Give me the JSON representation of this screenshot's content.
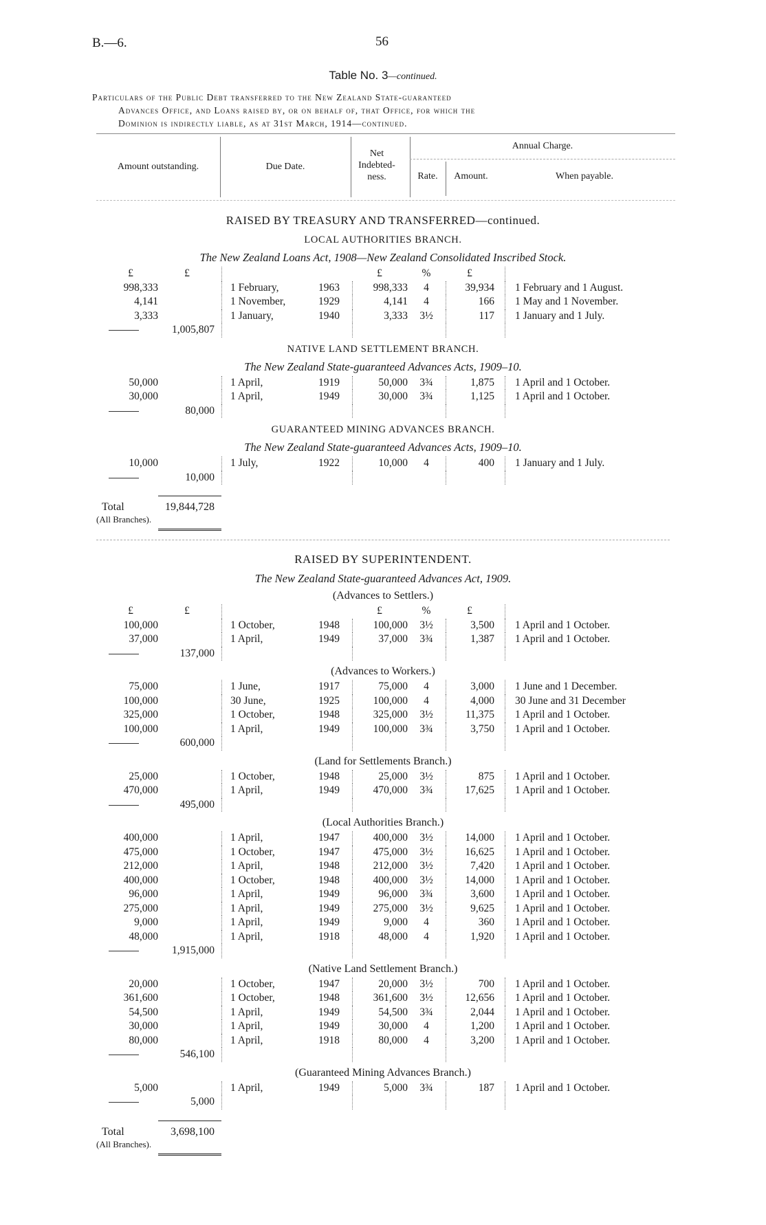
{
  "page": {
    "ref": "B.—6.",
    "number": "56"
  },
  "table_title": {
    "main": "Table No. 3",
    "suffix": "—continued."
  },
  "particulars": [
    "Particulars of the Public Debt transferred to the New Zealand State-guaranteed",
    "Advances Office, and Loans raised by, or on behalf of, that Office, for which the",
    "Dominion is indirectly liable, as at 31st March, 1914—continued."
  ],
  "columns": {
    "amount_outstanding": "Amount outstanding.",
    "due_date": "Due Date.",
    "net": "Net Indebted-ness.",
    "annual_charge": "Annual Charge.",
    "rate": "Rate.",
    "amount": "Amount.",
    "when_payable": "When payable."
  },
  "parts": [
    {
      "title": "RAISED BY TREASURY AND TRANSFERRED—continued.",
      "groups": [
        {
          "heading": "LOCAL AUTHORITIES BRANCH.",
          "act": "The New Zealand Loans Act, 1908—New Zealand Consolidated Inscribed Stock.",
          "units": {
            "amount": "£",
            "sub": "£",
            "net": "£",
            "rate": "%",
            "charge": "£"
          },
          "rows": [
            [
              "998,333",
              "1 February,",
              "1963",
              "998,333",
              "4",
              "39,934",
              "1 February and 1 August."
            ],
            [
              "4,141",
              "1 November,",
              "1929",
              "4,141",
              "4",
              "166",
              "1 May and 1 November."
            ],
            [
              "3,333",
              "1 January,",
              "1940",
              "3,333",
              "3½",
              "117",
              "1 January and 1 July."
            ]
          ],
          "subtotal": "1,005,807"
        },
        {
          "heading": "NATIVE LAND SETTLEMENT BRANCH.",
          "act": "The New Zealand State-guaranteed Advances Acts, 1909–10.",
          "rows": [
            [
              "50,000",
              "1 April,",
              "1919",
              "50,000",
              "3¾",
              "1,875",
              "1 April and 1 October."
            ],
            [
              "30,000",
              "1 April,",
              "1949",
              "30,000",
              "3¾",
              "1,125",
              "1 April and 1 October."
            ]
          ],
          "subtotal": "80,000"
        },
        {
          "heading": "GUARANTEED MINING ADVANCES BRANCH.",
          "act": "The New Zealand State-guaranteed Advances Acts, 1909–10.",
          "rows": [
            [
              "10,000",
              "1 July,",
              "1922",
              "10,000",
              "4",
              "400",
              "1 January and 1 July."
            ]
          ],
          "subtotal": "10,000"
        }
      ],
      "total": {
        "label": "Total",
        "sublabel": "(All Branches).",
        "value": "19,844,728"
      }
    },
    {
      "title": "RAISED BY SUPERINTENDENT.",
      "act": "The New Zealand State-guaranteed Advances Act, 1909.",
      "groups": [
        {
          "heading": "(Advances to Settlers.)",
          "units": {
            "amount": "£",
            "sub": "£",
            "net": "£",
            "rate": "%",
            "charge": "£"
          },
          "rows": [
            [
              "100,000",
              "1 October,",
              "1948",
              "100,000",
              "3½",
              "3,500",
              "1 April and 1 October."
            ],
            [
              "37,000",
              "1 April,",
              "1949",
              "37,000",
              "3¾",
              "1,387",
              "1 April and 1 October."
            ]
          ],
          "subtotal": "137,000"
        },
        {
          "heading": "(Advances to Workers.)",
          "rows": [
            [
              "75,000",
              "1 June,",
              "1917",
              "75,000",
              "4",
              "3,000",
              "1 June and 1 December."
            ],
            [
              "100,000",
              "30 June,",
              "1925",
              "100,000",
              "4",
              "4,000",
              "30 June and 31 December"
            ],
            [
              "325,000",
              "1 October,",
              "1948",
              "325,000",
              "3½",
              "11,375",
              "1 April and 1 October."
            ],
            [
              "100,000",
              "1 April,",
              "1949",
              "100,000",
              "3¾",
              "3,750",
              "1 April and 1 October."
            ]
          ],
          "subtotal": "600,000"
        },
        {
          "heading": "(Land for Settlements Branch.)",
          "rows": [
            [
              "25,000",
              "1 October,",
              "1948",
              "25,000",
              "3½",
              "875",
              "1 April and 1 October."
            ],
            [
              "470,000",
              "1 April,",
              "1949",
              "470,000",
              "3¾",
              "17,625",
              "1 April and 1 October."
            ]
          ],
          "subtotal": "495,000"
        },
        {
          "heading": "(Local Authorities Branch.)",
          "rows": [
            [
              "400,000",
              "1 April,",
              "1947",
              "400,000",
              "3½",
              "14,000",
              "1 April and 1 October."
            ],
            [
              "475,000",
              "1 October,",
              "1947",
              "475,000",
              "3½",
              "16,625",
              "1 April and 1 October."
            ],
            [
              "212,000",
              "1 April,",
              "1948",
              "212,000",
              "3½",
              "7,420",
              "1 April and 1 October."
            ],
            [
              "400,000",
              "1 October,",
              "1948",
              "400,000",
              "3½",
              "14,000",
              "1 April and 1 October."
            ],
            [
              "96,000",
              "1 April,",
              "1949",
              "96,000",
              "3¾",
              "3,600",
              "1 April and 1 October."
            ],
            [
              "275,000",
              "1 April,",
              "1949",
              "275,000",
              "3½",
              "9,625",
              "1 April and 1 October."
            ],
            [
              "9,000",
              "1 April,",
              "1949",
              "9,000",
              "4",
              "360",
              "1 April and 1 October."
            ],
            [
              "48,000",
              "1 April,",
              "1918",
              "48,000",
              "4",
              "1,920",
              "1 April and 1 October."
            ]
          ],
          "subtotal": "1,915,000"
        },
        {
          "heading": "(Native Land Settlement Branch.)",
          "rows": [
            [
              "20,000",
              "1 October,",
              "1947",
              "20,000",
              "3½",
              "700",
              "1 April and 1 October."
            ],
            [
              "361,600",
              "1 October,",
              "1948",
              "361,600",
              "3½",
              "12,656",
              "1 April and 1 October."
            ],
            [
              "54,500",
              "1 April,",
              "1949",
              "54,500",
              "3¾",
              "2,044",
              "1 April and 1 October."
            ],
            [
              "30,000",
              "1 April,",
              "1949",
              "30,000",
              "4",
              "1,200",
              "1 April and 1 October."
            ],
            [
              "80,000",
              "1 April,",
              "1918",
              "80,000",
              "4",
              "3,200",
              "1 April and 1 October."
            ]
          ],
          "subtotal": "546,100"
        },
        {
          "heading": "(Guaranteed Mining Advances Branch.)",
          "rows": [
            [
              "5,000",
              "1 April,",
              "1949",
              "5,000",
              "3¾",
              "187",
              "1 April and 1 October."
            ]
          ],
          "subtotal": "5,000"
        }
      ],
      "total": {
        "label": "Total",
        "sublabel": "(All Branches).",
        "value": "3,698,100"
      }
    }
  ]
}
